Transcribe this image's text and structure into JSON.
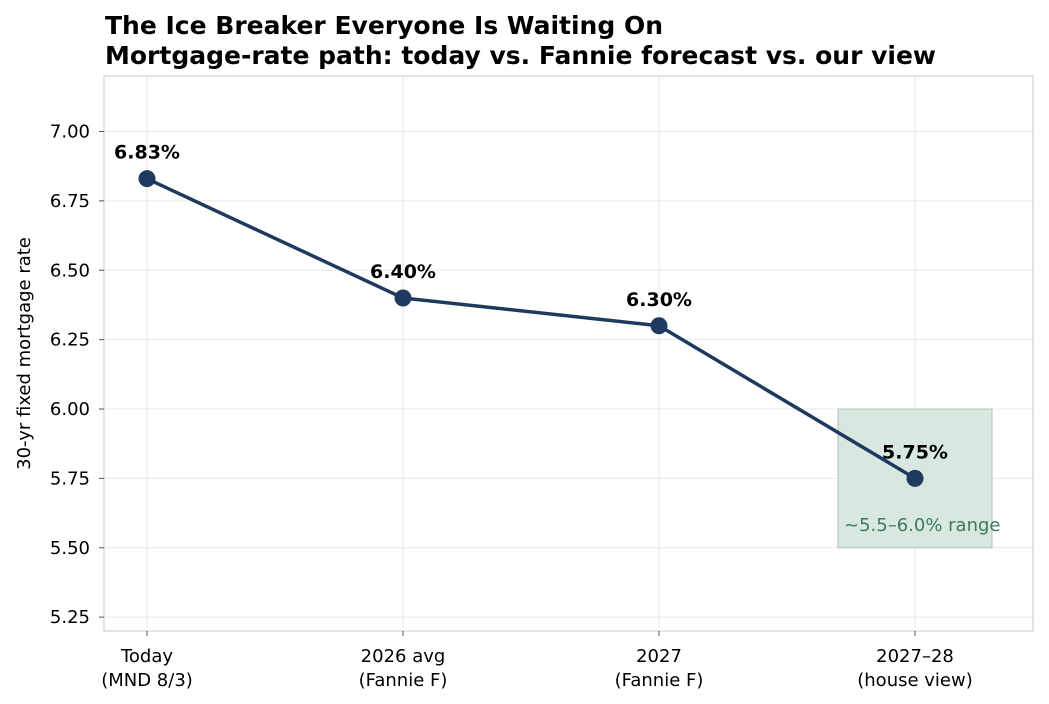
{
  "chart_data": {
    "type": "line",
    "title": "The Ice Breaker Everyone Is Waiting On",
    "subtitle": "Mortgage-rate path: today vs. Fannie forecast vs. our view",
    "xlabel": "",
    "ylabel": "30-yr fixed mortgage rate",
    "categories": [
      [
        "Today",
        "(MND 8/3)"
      ],
      [
        "2026 avg",
        "(Fannie F)"
      ],
      [
        "2027",
        "(Fannie F)"
      ],
      [
        "2027–28",
        "(house view)"
      ]
    ],
    "values": [
      6.83,
      6.4,
      6.3,
      5.75
    ],
    "data_labels": [
      "6.83%",
      "6.40%",
      "6.30%",
      "5.75%"
    ],
    "ylim": [
      5.2,
      7.2
    ],
    "yticks": [
      5.25,
      5.5,
      5.75,
      6.0,
      6.25,
      6.5,
      6.75,
      7.0
    ],
    "ytick_labels": [
      "5.25",
      "5.50",
      "5.75",
      "6.00",
      "6.25",
      "6.50",
      "6.75",
      "7.00"
    ],
    "grid": true,
    "line_color": "#1f3a5f",
    "range_band": {
      "category_index": 3,
      "low": 5.5,
      "high": 6.0,
      "label": "~5.5–6.0% range",
      "fill_color": "#d8e8e0",
      "edge_color": "#a9c9b6",
      "label_color": "#3e7a57"
    }
  }
}
